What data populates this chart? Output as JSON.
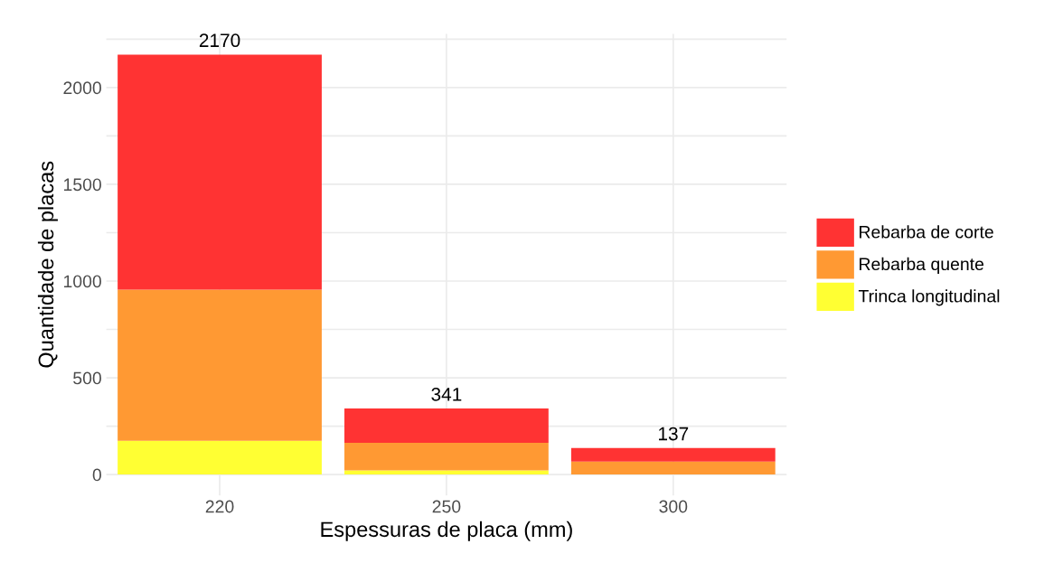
{
  "chart_data": {
    "type": "bar",
    "stacked": true,
    "xlabel": "Espessuras de placa (mm)",
    "ylabel": "Quantidade de placas",
    "categories": [
      "220",
      "250",
      "300"
    ],
    "series": [
      {
        "name": "Trinca longitudinal",
        "color": "#ffff33",
        "values": [
          175,
          22,
          0
        ]
      },
      {
        "name": "Rebarba quente",
        "color": "#ff9933",
        "values": [
          781,
          142,
          67
        ]
      },
      {
        "name": "Rebarba de corte",
        "color": "#ff3333",
        "values": [
          1214,
          177,
          70
        ]
      }
    ],
    "totals": [
      "2170",
      "341",
      "137"
    ],
    "ylim": [
      -108,
      2278
    ],
    "yticks": [
      0,
      {
        "value": 250,
        "label": null
      },
      500,
      {
        "value": 750,
        "label": null
      },
      1000,
      {
        "value": 1250,
        "label": null
      },
      1500,
      {
        "value": 1750,
        "label": null
      },
      2000,
      {
        "value": 2250,
        "label": null
      }
    ],
    "grid": true,
    "legend": "right"
  }
}
